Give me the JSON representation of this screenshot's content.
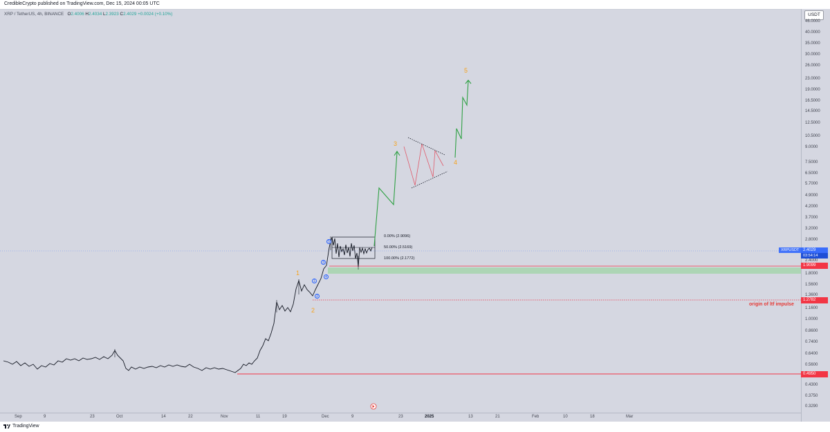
{
  "header": {
    "published_text": "CredibleCrypto published on TradingView.com, Dec 15, 2024 00:05 UTC"
  },
  "legend": {
    "symbol": "XRP / TetherUS, 4h, BINANCE",
    "open_label": "O",
    "open": "2.4006",
    "high_label": "H",
    "high": "2.4034",
    "low_label": "L",
    "low": "2.3923",
    "close_label": "C",
    "close": "2.4029",
    "change": "+0.0024 (+0.10%)"
  },
  "price_axis": {
    "currency": "USDT",
    "labels": [
      "46.0000",
      "40.0000",
      "35.0000",
      "30.0000",
      "26.0000",
      "23.0000",
      "19.0000",
      "16.5000",
      "14.5000",
      "12.5000",
      "10.5000",
      "9.0000",
      "7.5000",
      "6.5000",
      "5.7000",
      "4.9000",
      "4.2000",
      "3.7000",
      "3.2000",
      "2.8000",
      "2.4000",
      "1.8000",
      "1.5600",
      "1.3600",
      "1.1600",
      "1.0000",
      "0.8600",
      "0.7400",
      "0.6400",
      "0.5600",
      "0.4950",
      "0.4300",
      "0.3750",
      "0.3290"
    ],
    "current_symbol": "XRPUSDT",
    "current_price": "2.4029",
    "countdown": "03:54:14",
    "level_high": "1.9099",
    "level_mid": "1.2782",
    "level_low": "0.4950"
  },
  "time_axis": {
    "labels": [
      "Sep",
      "9",
      "23",
      "Oct",
      "14",
      "22",
      "Nov",
      "11",
      "19",
      "Dec",
      "9",
      "23",
      "2025",
      "13",
      "21",
      "Feb",
      "10",
      "18",
      "Mar"
    ]
  },
  "annotations": {
    "fib_0": "0.00% (2.9096)",
    "fib_50": "50.00% (2.5169)",
    "fib_100": "100.00% (2.1772)",
    "origin": "origin of ltf impulse",
    "wave_1": "1",
    "wave_2": "2",
    "wave_3": "3",
    "wave_4": "4",
    "wave_5": "5",
    "sub_waves": [
      "1",
      "2",
      "3",
      "4",
      "5"
    ]
  },
  "footer": {
    "brand": "TradingView"
  },
  "colors": {
    "background": "#d5d7e1",
    "candle": "#131722",
    "projection_up": "#2ea043",
    "projection_down": "#e05a6a",
    "level_line": "#f23645",
    "support_zone": "#a8d5b0",
    "wave_label": "#f7a21b",
    "sub_wave": "#2962ff"
  }
}
